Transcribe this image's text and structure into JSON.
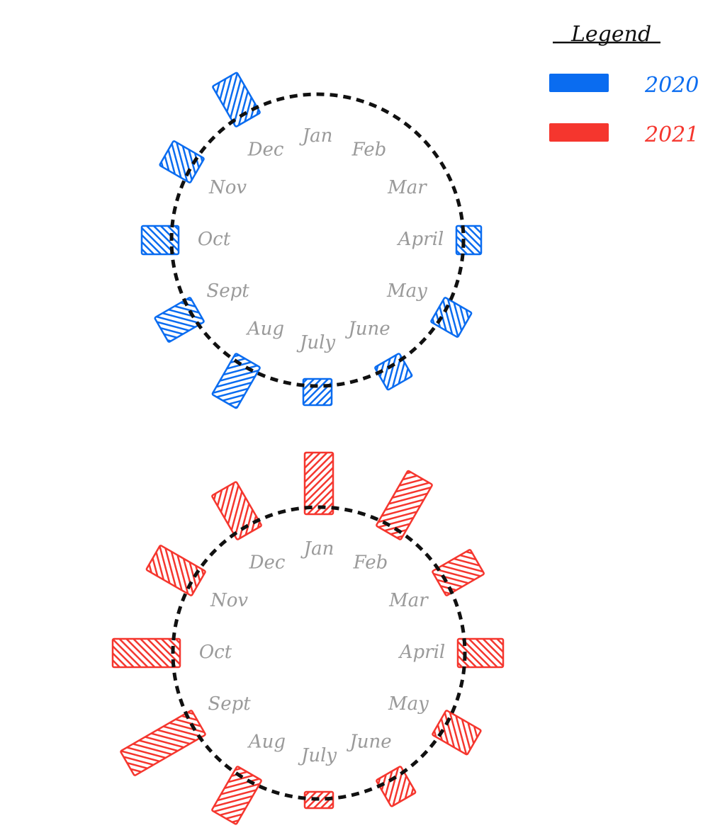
{
  "chart_data": {
    "type": "radial-bar",
    "legend": {
      "title": "Legend",
      "position": "top-right",
      "entries": [
        {
          "label": "2020",
          "color": "#0a6cf0"
        },
        {
          "label": "2021",
          "color": "#f5362e"
        }
      ]
    },
    "categories": [
      "Jan",
      "Feb",
      "Mar",
      "April",
      "May",
      "June",
      "July",
      "Aug",
      "Sept",
      "Oct",
      "Nov",
      "Dec"
    ],
    "series": [
      {
        "name": "2020",
        "color": "#0a6cf0",
        "values": [
          0,
          0,
          0,
          25,
          34,
          27,
          27,
          57,
          48,
          42,
          40,
          56
        ]
      },
      {
        "name": "2021",
        "color": "#f5362e",
        "values": [
          77,
          80,
          52,
          54,
          47,
          33,
          13,
          62,
          106,
          85,
          64,
          62
        ]
      }
    ]
  }
}
